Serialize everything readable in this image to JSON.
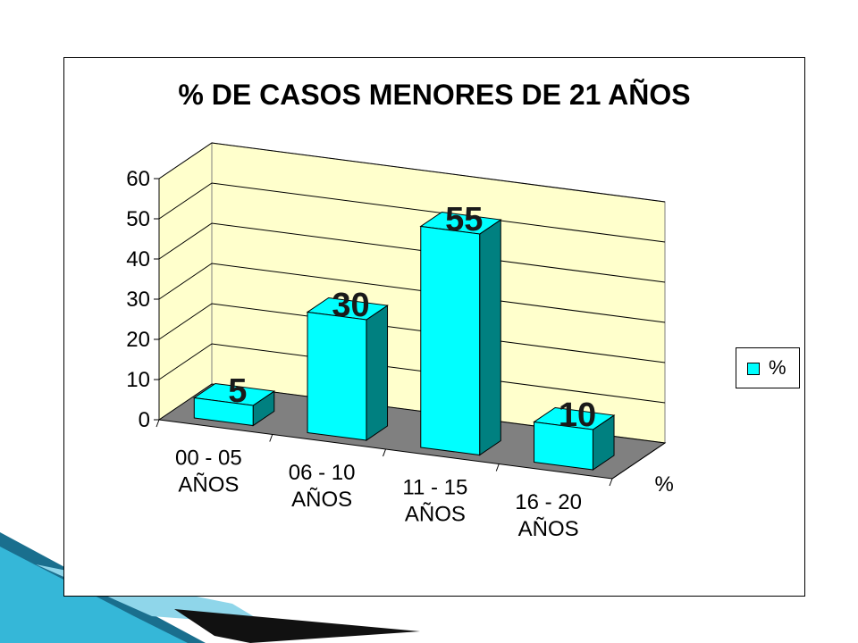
{
  "slide": {
    "colors": {
      "accent": "#35B7D8",
      "accent_dark": "#1A6F8E"
    }
  },
  "chart_data": {
    "type": "bar",
    "title": "% DE CASOS MENORES DE 21 AÑOS",
    "categories": [
      [
        "00 - 05",
        "AÑOS"
      ],
      [
        "06 - 10",
        "AÑOS"
      ],
      [
        "11 - 15",
        "AÑOS"
      ],
      [
        "16 - 20",
        "AÑOS"
      ]
    ],
    "series": [
      {
        "name": "%",
        "values": [
          5,
          30,
          55,
          10
        ],
        "color": "#00FFFF"
      }
    ],
    "data_labels": [
      "5",
      "30",
      "55",
      "10"
    ],
    "yticks": [
      "0",
      "10",
      "20",
      "30",
      "40",
      "50",
      "60"
    ],
    "ylim": [
      0,
      60
    ],
    "depth_axis_label": "%",
    "legend": {
      "position": "right",
      "label": "%"
    },
    "grid": true,
    "colors": {
      "wall": "#FFFFCC",
      "floor": "#808080",
      "bar_front": "#00FFFF",
      "bar_side": "#008080"
    }
  }
}
